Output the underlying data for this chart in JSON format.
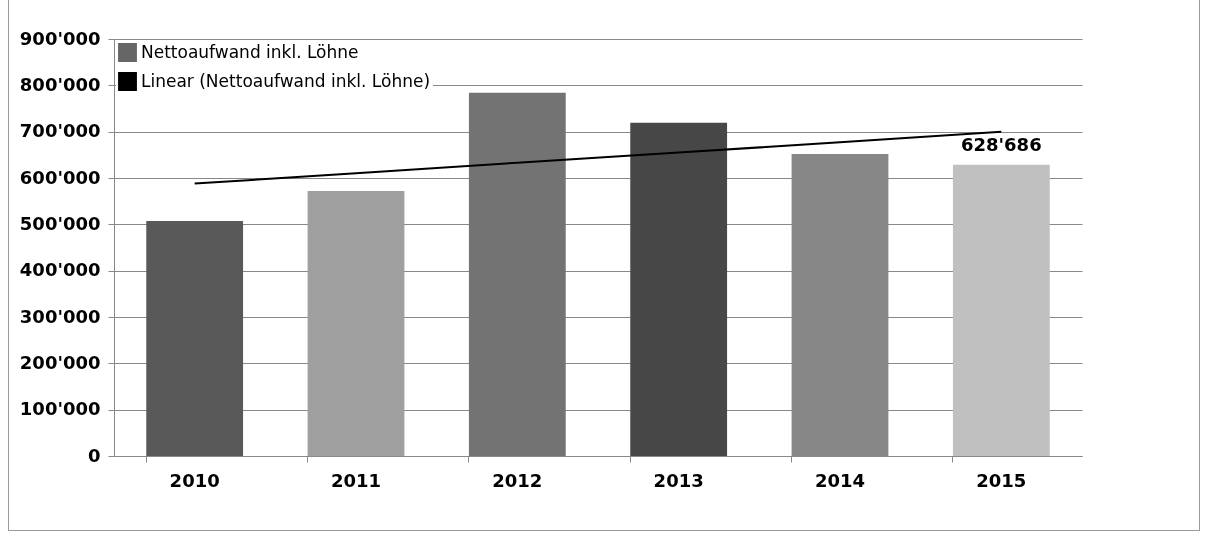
{
  "chart_data": {
    "type": "bar",
    "categories": [
      "2010",
      "2011",
      "2012",
      "2013",
      "2014",
      "2015"
    ],
    "series": [
      {
        "name": "Nettoaufwand inkl. Löhne",
        "color": "#666666",
        "colors": [
          "#595959",
          "#a0a0a0",
          "#737373",
          "#474747",
          "#878787",
          "#c0c0c0"
        ],
        "values": [
          507000,
          572000,
          784000,
          719000,
          652000,
          628686
        ],
        "value_labels": [
          null,
          null,
          null,
          null,
          null,
          "628'686"
        ]
      },
      {
        "name": "Linear (Nettoaufwand inkl. Löhne)",
        "type": "line",
        "color": "#000000",
        "values": [
          588000,
          610000,
          633000,
          655000,
          677000,
          700000
        ]
      }
    ],
    "ylim": [
      0,
      900000
    ],
    "yticks": [
      {
        "value": 0,
        "label": "0"
      },
      {
        "value": 100000,
        "label": "100'000"
      },
      {
        "value": 200000,
        "label": "200'000"
      },
      {
        "value": 300000,
        "label": "300'000"
      },
      {
        "value": 400000,
        "label": "400'000"
      },
      {
        "value": 500000,
        "label": "500'000"
      },
      {
        "value": 600000,
        "label": "600'000"
      },
      {
        "value": 700000,
        "label": "700'000"
      },
      {
        "value": 800000,
        "label": "800'000"
      },
      {
        "value": 900000,
        "label": "900'000"
      }
    ],
    "grid": "y",
    "legend": "top left"
  }
}
